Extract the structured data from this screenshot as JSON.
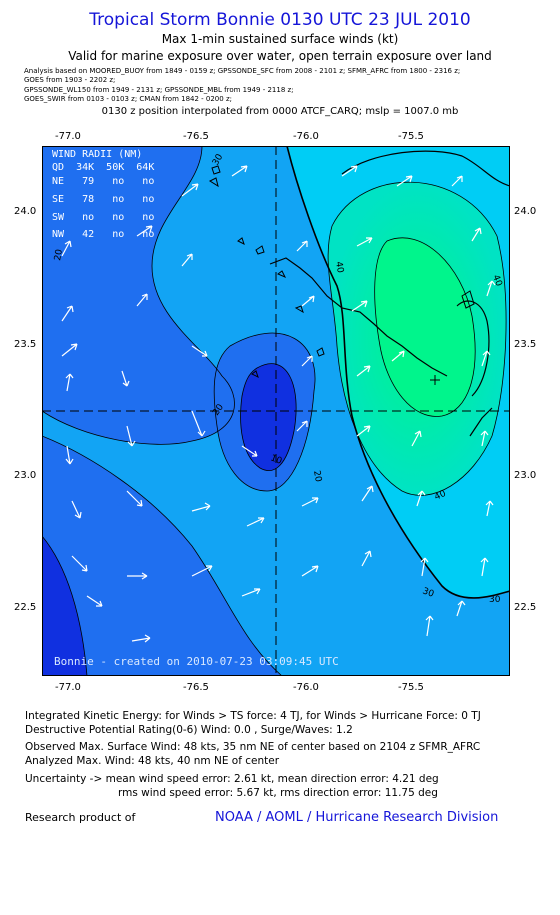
{
  "header": {
    "title": "Tropical Storm Bonnie 0130 UTC 23 JUL 2010",
    "subtitle1": "Max 1-min sustained surface winds (kt)",
    "subtitle2": "Valid for marine exposure over water, open terrain exposure over land",
    "sources": [
      "Analysis based on   MOORED_BUOY from 1849 - 0159 z;  GPSSONDE_SFC from 2008 - 2101 z;  SFMR_AFRC from 1800 - 2316 z;",
      "GOES from 1903 - 2202 z;",
      "GPSSONDE_WL150 from 1949 - 2131 z;  GPSSONDE_MBL from 1949 - 2118 z;",
      "GOES_SWIR from 0103 - 0103 z;  CMAN from 1842 - 0200 z;"
    ],
    "position_line": "0130 z position interpolated from 0000 ATCF_CARQ; mslp = 1007.0 mb"
  },
  "map": {
    "x_ticks": [
      "-77.0",
      "-76.5",
      "-76.0",
      "-75.5"
    ],
    "y_ticks": [
      "24.0",
      "23.5",
      "23.0",
      "22.5"
    ],
    "contour_labels": [
      "20",
      "30",
      "40",
      "10"
    ],
    "wind_radii": {
      "title": "WIND RADII (NM)",
      "header": "QD  34K  50K  64K",
      "rows": [
        "NE   79   no   no",
        "SE   78   no   no",
        "SW   no   no   no",
        "NW   42   no   no"
      ]
    },
    "credit": "Bonnie - created on 2010-07-23 03:09:45 UTC",
    "colors": {
      "c0_10": "#1030e0",
      "c10_20": "#1f6ff0",
      "c20_30": "#12a4f4",
      "c30_40": "#00cdf5",
      "c40_50": "#00e3c4",
      "c50": "#00f58c"
    }
  },
  "footer": {
    "ike": "Integrated Kinetic Energy:  for Winds > TS force: 4 TJ,  for Winds > Hurricane Force: 0 TJ",
    "dpr": "Destructive Potential Rating(0-6)   Wind: 0.0 , Surge/Waves: 1.2",
    "observed": "Observed Max. Surface Wind: 48 kts, 35 nm NE of center based on 2104 z SFMR_AFRC",
    "analyzed": "Analyzed Max. Wind: 48 kts, 40 nm NE of center",
    "uncertainty1": "Uncertainty -> mean wind speed error: 2.61 kt,   mean direction error: 4.21 deg",
    "uncertainty2": "rms wind speed error: 5.67 kt,   rms direction error: 11.75 deg",
    "research": "Research product of",
    "org": "NOAA / AOML / Hurricane Research Division"
  }
}
